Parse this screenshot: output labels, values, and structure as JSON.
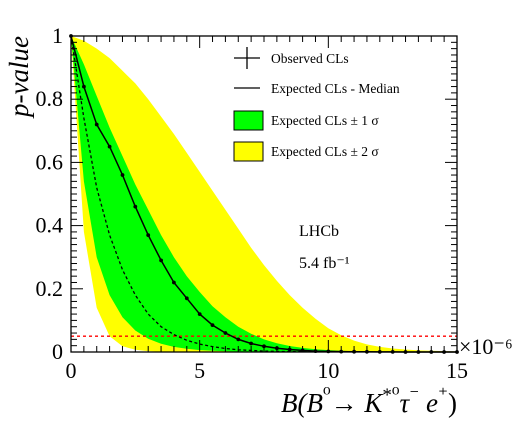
{
  "chart_data": {
    "type": "line",
    "xlabel": "B(B⁰→ K*⁰τ⁻ e⁺)",
    "ylabel": "p-value",
    "x_multiplier_label": "×10⁻⁶",
    "xlim": [
      0,
      15
    ],
    "ylim": [
      0,
      1
    ],
    "x_ticks": [
      0,
      5,
      10,
      15
    ],
    "y_ticks": [
      0,
      0.2,
      0.4,
      0.6,
      0.8,
      1
    ],
    "x_tick_labels": [
      "0",
      "5",
      "10",
      "15"
    ],
    "y_tick_labels": [
      "0",
      "0.2",
      "0.4",
      "0.6",
      "0.8",
      "1"
    ],
    "legend_position": "top-right",
    "legend": {
      "observed": "Observed CLs",
      "median": "Expected CLs - Median",
      "band1": "Expected CLs ± 1 σ",
      "band2": "Expected CLs ± 2 σ"
    },
    "annotations": {
      "experiment": "LHCb",
      "luminosity": "5.4 fb⁻¹"
    },
    "colors": {
      "band1": "#00ff00",
      "band2": "#ffff00",
      "reference_line": "#ff0000",
      "observed": "#000000"
    },
    "reference_line_y": 0.05,
    "series": [
      {
        "name": "Observed CLs",
        "x": [
          0,
          0.5,
          1,
          1.5,
          2,
          2.5,
          3,
          3.5,
          4,
          4.5,
          5,
          5.5,
          6,
          6.5,
          7,
          7.5,
          8,
          8.5,
          9,
          9.5,
          10,
          10.5,
          11,
          11.5,
          12,
          12.5,
          13,
          13.5,
          14,
          14.5,
          15
        ],
        "values": [
          1.0,
          0.84,
          0.72,
          0.65,
          0.56,
          0.46,
          0.37,
          0.29,
          0.22,
          0.17,
          0.12,
          0.085,
          0.06,
          0.04,
          0.027,
          0.018,
          0.012,
          0.008,
          0.005,
          0.003,
          0.002,
          0.0013,
          0.0008,
          0.0005,
          0.0003,
          0.0002,
          0.0001,
          6e-05,
          3e-05,
          2e-05,
          1e-05
        ]
      },
      {
        "name": "Expected CLs - Median",
        "x": [
          0,
          0.5,
          1,
          1.5,
          2,
          2.5,
          3,
          3.5,
          4,
          4.5,
          5,
          5.5,
          6,
          6.5,
          7,
          7.5,
          8,
          8.5,
          9,
          9.5,
          10
        ],
        "values": [
          1.0,
          0.74,
          0.52,
          0.37,
          0.26,
          0.18,
          0.12,
          0.08,
          0.055,
          0.037,
          0.025,
          0.017,
          0.011,
          0.007,
          0.005,
          0.003,
          0.002,
          0.0013,
          0.0008,
          0.0005,
          0.0003
        ]
      }
    ],
    "bands": {
      "x": [
        0,
        0.5,
        1,
        1.5,
        2,
        2.5,
        3,
        3.5,
        4,
        4.5,
        5,
        5.5,
        6,
        6.5,
        7,
        7.5,
        8,
        8.5,
        9,
        9.5,
        10,
        10.5,
        11,
        11.5,
        12,
        12.5,
        13,
        13.5,
        14,
        14.5,
        15
      ],
      "sigma2_upper": [
        1.0,
        0.985,
        0.96,
        0.93,
        0.89,
        0.85,
        0.8,
        0.745,
        0.69,
        0.63,
        0.57,
        0.51,
        0.45,
        0.39,
        0.33,
        0.275,
        0.225,
        0.18,
        0.14,
        0.105,
        0.075,
        0.053,
        0.036,
        0.024,
        0.016,
        0.011,
        0.008,
        0.005,
        0.004,
        0.003,
        0.002
      ],
      "sigma1_upper": [
        1.0,
        0.91,
        0.81,
        0.71,
        0.62,
        0.53,
        0.45,
        0.37,
        0.3,
        0.24,
        0.19,
        0.145,
        0.11,
        0.08,
        0.058,
        0.04,
        0.028,
        0.019,
        0.013,
        0.009,
        0.006,
        0.004,
        0.0026,
        0.0017,
        0.001,
        0.0007,
        0.0004,
        0.0003,
        0.0002,
        0.0001,
        0.0001
      ],
      "sigma1_lower": [
        1.0,
        0.54,
        0.3,
        0.18,
        0.11,
        0.068,
        0.042,
        0.026,
        0.016,
        0.01,
        0.006,
        0.004,
        0.0025,
        0.0015,
        0.001,
        0.0006,
        0.0004,
        0.0002,
        0.0001,
        0.0001,
        0,
        0,
        0,
        0,
        0,
        0,
        0,
        0,
        0,
        0,
        0
      ],
      "sigma2_lower": [
        1.0,
        0.38,
        0.14,
        0.05,
        0.018,
        0.007,
        0.003,
        0.001,
        0.0004,
        0.0002,
        0.0001,
        0,
        0,
        0,
        0,
        0,
        0,
        0,
        0,
        0,
        0,
        0,
        0,
        0,
        0,
        0,
        0,
        0,
        0,
        0,
        0
      ]
    }
  }
}
